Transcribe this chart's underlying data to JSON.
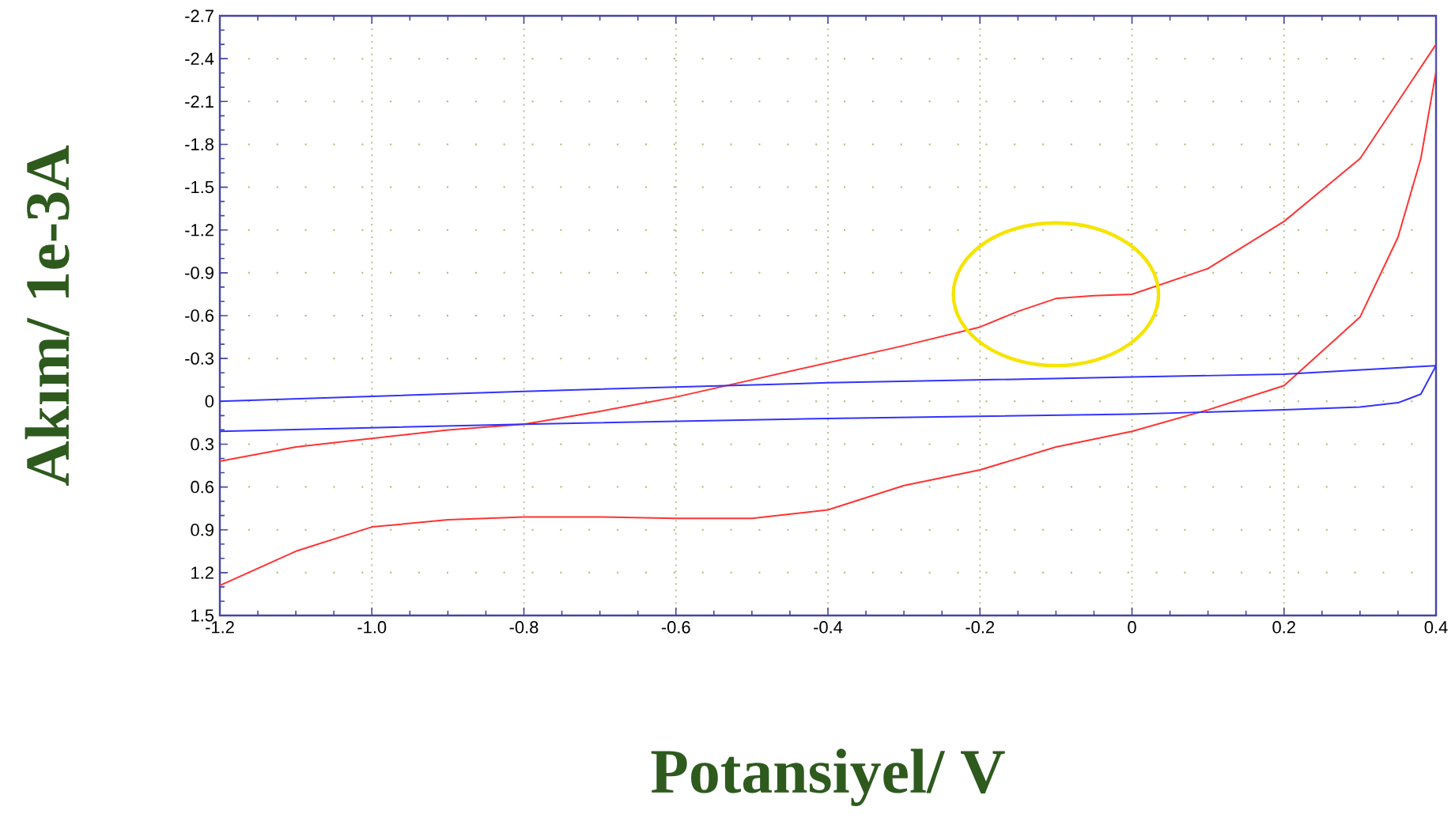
{
  "chart_data": {
    "type": "line",
    "xlabel": "Potansiyel/ V",
    "ylabel": "Akım/ 1e-3A",
    "xlim": [
      -1.2,
      0.4
    ],
    "ylim": [
      1.5,
      -2.7
    ],
    "xticks": [
      -1.2,
      {
        "value": -1.0,
        "label": "-1.0"
      },
      -0.8,
      -0.6,
      -0.4,
      -0.2,
      0,
      0.2,
      0.4
    ],
    "yticks": [
      -2.7,
      -2.4,
      -2.1,
      -1.8,
      -1.5,
      -1.2,
      -0.9,
      -0.6,
      -0.3,
      0,
      0.3,
      0.6,
      0.9,
      1.2,
      1.5
    ],
    "grid": true,
    "line_style": "solid",
    "series": [
      {
        "color": "#ff3333",
        "x": [
          -1.2,
          -1.1,
          -1.0,
          -0.9,
          -0.8,
          -0.7,
          -0.6,
          -0.5,
          -0.4,
          -0.3,
          -0.2,
          -0.1,
          0,
          0.1,
          0.2,
          0.3,
          0.35,
          0.38,
          0.4,
          0.4,
          0.3,
          0.2,
          0.1,
          0.0,
          -0.05,
          -0.1,
          -0.15,
          -0.2,
          -0.3,
          -0.35,
          -0.55,
          -0.6,
          -0.7,
          -0.8,
          -0.9,
          -1.05,
          -1.1,
          -1.2
        ],
        "values": [
          1.29,
          1.05,
          0.88,
          0.83,
          0.81,
          0.81,
          0.82,
          0.82,
          0.76,
          0.59,
          0.48,
          0.32,
          0.21,
          0.06,
          -0.11,
          -0.59,
          -1.15,
          -1.7,
          -2.31,
          -2.5,
          -1.7,
          -1.26,
          -0.93,
          -0.75,
          -0.74,
          -0.72,
          -0.63,
          -0.52,
          -0.39,
          -0.33,
          -0.09,
          -0.03,
          0.07,
          0.16,
          0.2,
          0.29,
          0.32,
          0.42
        ]
      },
      {
        "color": "#3333ff",
        "x": [
          -1.2,
          -0.8,
          -0.4,
          0,
          0.2,
          0.4,
          0.4,
          0.38,
          0.35,
          0.3,
          0.2,
          0,
          -0.4,
          -0.8,
          -1.2
        ],
        "values": [
          0.0,
          -0.07,
          -0.13,
          -0.17,
          -0.19,
          -0.25,
          -0.25,
          -0.05,
          0.01,
          0.04,
          0.06,
          0.09,
          0.12,
          0.16,
          0.21
        ]
      }
    ]
  }
}
